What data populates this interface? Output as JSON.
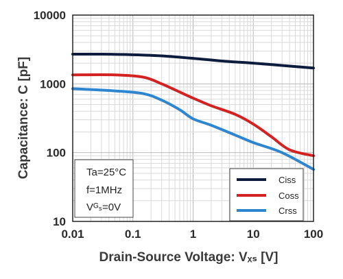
{
  "chart_data": {
    "type": "line",
    "title": "",
    "xlabel": "Drain-Source Voltage: Vₓₛ [V]",
    "ylabel": "Capacitance: C [pF]",
    "x_scale": "log",
    "y_scale": "log",
    "xlim": [
      0.01,
      100
    ],
    "ylim": [
      10,
      10000
    ],
    "grid": true,
    "x_ticks": [
      "0.01",
      "0.1",
      "1",
      "10",
      "100"
    ],
    "y_ticks": [
      "10",
      "100",
      "1000",
      "10000"
    ],
    "legend_position": "bottom-right",
    "conditions": [
      "Ta=25°C",
      "f=1MHz",
      "Vᴳₛ=0V"
    ],
    "series": [
      {
        "name": "Ciss",
        "color": "#0d1b3d",
        "points": [
          [
            0.01,
            2700
          ],
          [
            0.03,
            2700
          ],
          [
            0.1,
            2650
          ],
          [
            0.3,
            2550
          ],
          [
            1,
            2350
          ],
          [
            3,
            2150
          ],
          [
            10,
            2000
          ],
          [
            30,
            1850
          ],
          [
            100,
            1700
          ]
        ]
      },
      {
        "name": "Coss",
        "color": "#d42222",
        "points": [
          [
            0.01,
            1350
          ],
          [
            0.05,
            1350
          ],
          [
            0.15,
            1250
          ],
          [
            0.3,
            1000
          ],
          [
            0.6,
            760
          ],
          [
            1,
            620
          ],
          [
            2,
            480
          ],
          [
            5,
            360
          ],
          [
            10,
            260
          ],
          [
            20,
            170
          ],
          [
            40,
            110
          ],
          [
            100,
            90
          ]
        ]
      },
      {
        "name": "Crss",
        "color": "#2f86d0",
        "points": [
          [
            0.01,
            850
          ],
          [
            0.05,
            790
          ],
          [
            0.15,
            720
          ],
          [
            0.3,
            580
          ],
          [
            0.6,
            420
          ],
          [
            1,
            310
          ],
          [
            2,
            250
          ],
          [
            5,
            180
          ],
          [
            10,
            140
          ],
          [
            30,
            100
          ],
          [
            100,
            57
          ]
        ]
      }
    ]
  }
}
